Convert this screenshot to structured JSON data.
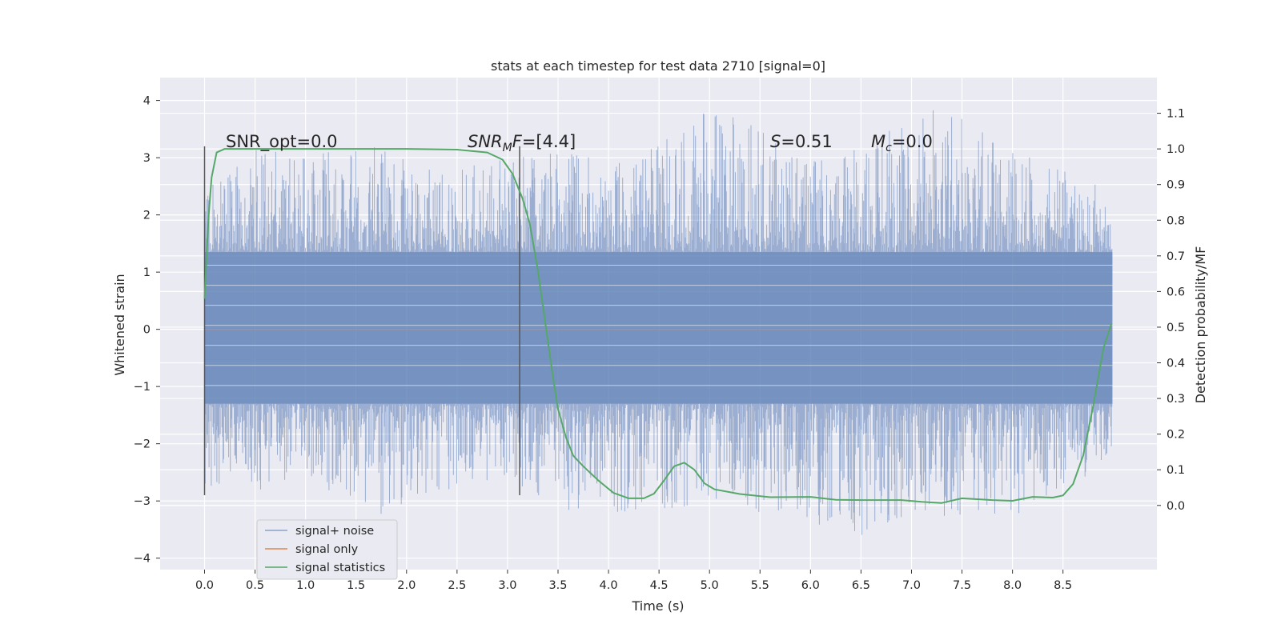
{
  "chart_data": {
    "type": "line",
    "title": "stats at each timestep for test data 2710 [signal=0]",
    "xlabel": "Time (s)",
    "ylabel_left": "Whitened strain",
    "ylabel_right": "Detection probability/MF",
    "xlim": [
      -0.44,
      9.43
    ],
    "ylim_left": [
      -4.2,
      4.4
    ],
    "ylim_right": [
      -0.18,
      1.2
    ],
    "x_ticks": [
      0.0,
      0.5,
      1.0,
      1.5,
      2.0,
      2.5,
      3.0,
      3.5,
      4.0,
      4.5,
      5.0,
      5.5,
      6.0,
      6.5,
      7.0,
      7.5,
      8.0,
      8.5
    ],
    "x_tick_labels": [
      "0.0",
      "0.5",
      "1.0",
      "1.5",
      "2.0",
      "2.5",
      "3.0",
      "3.5",
      "4.0",
      "4.5",
      "5.0",
      "5.5",
      "6.0",
      "6.5",
      "7.0",
      "7.5",
      "8.0",
      "8.5"
    ],
    "y_left_ticks": [
      4,
      3,
      2,
      1,
      0,
      -1,
      -2,
      -3,
      -4
    ],
    "y_left_tick_labels": [
      "4",
      "3",
      "2",
      "1",
      "0",
      "−1",
      "−2",
      "−3",
      "−4"
    ],
    "y_right_ticks": [
      1.1,
      1.0,
      0.9,
      0.8,
      0.7,
      0.6,
      0.5,
      0.4,
      0.3,
      0.2,
      0.1,
      0.0
    ],
    "y_right_tick_labels": [
      "1.1",
      "1.0",
      "0.9",
      "0.8",
      "0.7",
      "0.6",
      "0.5",
      "0.4",
      "0.3",
      "0.2",
      "0.1",
      "0.0"
    ],
    "grid": true,
    "legend_position": "lower-left",
    "series": [
      {
        "name": "signal+ noise",
        "axis": "left",
        "color": "#4c72b0",
        "t_range": [
          0.0,
          8.99
        ],
        "envelope": [
          {
            "x": 0.0,
            "max": 2.5,
            "min": -2.9
          },
          {
            "x": 0.3,
            "max": 2.9,
            "min": -2.5
          },
          {
            "x": 0.5,
            "max": 3.3,
            "min": -2.9
          },
          {
            "x": 1.0,
            "max": 3.1,
            "min": -2.6
          },
          {
            "x": 1.7,
            "max": 3.2,
            "min": -3.3
          },
          {
            "x": 2.2,
            "max": 2.8,
            "min": -2.9
          },
          {
            "x": 3.0,
            "max": 3.0,
            "min": -2.6
          },
          {
            "x": 3.5,
            "max": 3.1,
            "min": -3.2
          },
          {
            "x": 4.2,
            "max": 2.9,
            "min": -3.3
          },
          {
            "x": 5.1,
            "max": 4.0,
            "min": -3.0
          },
          {
            "x": 5.9,
            "max": 3.0,
            "min": -3.5
          },
          {
            "x": 6.5,
            "max": 3.3,
            "min": -3.6
          },
          {
            "x": 7.3,
            "max": 3.9,
            "min": -3.3
          },
          {
            "x": 8.0,
            "max": 3.2,
            "min": -3.3
          },
          {
            "x": 8.99,
            "max": 2.4,
            "min": -2.3
          }
        ]
      },
      {
        "name": "signal only",
        "axis": "left",
        "color": "#dd8452",
        "x": [
          0.0,
          8.99
        ],
        "y": [
          0.0,
          0.0
        ]
      },
      {
        "name": "signal statistics",
        "axis": "right",
        "color": "#55a868",
        "x": [
          0.0,
          0.04,
          0.07,
          0.12,
          0.2,
          0.5,
          1.0,
          2.0,
          2.5,
          2.8,
          2.95,
          3.05,
          3.15,
          3.22,
          3.3,
          3.38,
          3.45,
          3.5,
          3.58,
          3.65,
          3.75,
          3.9,
          4.05,
          4.2,
          4.35,
          4.45,
          4.55,
          4.65,
          4.75,
          4.85,
          4.95,
          5.05,
          5.3,
          5.6,
          6.0,
          6.25,
          6.5,
          6.9,
          7.1,
          7.3,
          7.5,
          7.8,
          8.0,
          8.2,
          8.4,
          8.5,
          8.6,
          8.7,
          8.8,
          8.9,
          8.98
        ],
        "y": [
          0.58,
          0.81,
          0.92,
          0.99,
          1.0,
          1.0,
          1.0,
          1.0,
          0.998,
          0.99,
          0.97,
          0.93,
          0.86,
          0.79,
          0.66,
          0.5,
          0.36,
          0.27,
          0.19,
          0.14,
          0.11,
          0.07,
          0.035,
          0.02,
          0.02,
          0.033,
          0.07,
          0.11,
          0.12,
          0.1,
          0.062,
          0.045,
          0.032,
          0.023,
          0.024,
          0.016,
          0.015,
          0.015,
          0.01,
          0.007,
          0.02,
          0.015,
          0.013,
          0.024,
          0.022,
          0.028,
          0.06,
          0.14,
          0.28,
          0.44,
          0.51
        ]
      }
    ],
    "vertical_lines": [
      {
        "x": 0.0,
        "y": [
          -2.9,
          3.2
        ],
        "color": "#555555"
      },
      {
        "x": 3.12,
        "y": [
          -2.9,
          3.2
        ],
        "color": "#555555"
      }
    ],
    "annotations": [
      {
        "id": "snr_opt",
        "x": 0.2,
        "y": 3.2,
        "text": "SNR_opt=0.0"
      },
      {
        "id": "snr_mf",
        "x": 2.6,
        "y": 3.2,
        "text_italic": "SNR",
        "text_sub": "M",
        "text_italic2": "F",
        "text_rest": "=[4.4]"
      },
      {
        "id": "s_stat",
        "x": 5.6,
        "y": 3.2,
        "text_italic": "S",
        "text_rest": "=0.51"
      },
      {
        "id": "mc",
        "x": 6.6,
        "y": 3.2,
        "text_italic": "M",
        "text_sub": "c",
        "text_rest": "=0.0"
      }
    ]
  }
}
